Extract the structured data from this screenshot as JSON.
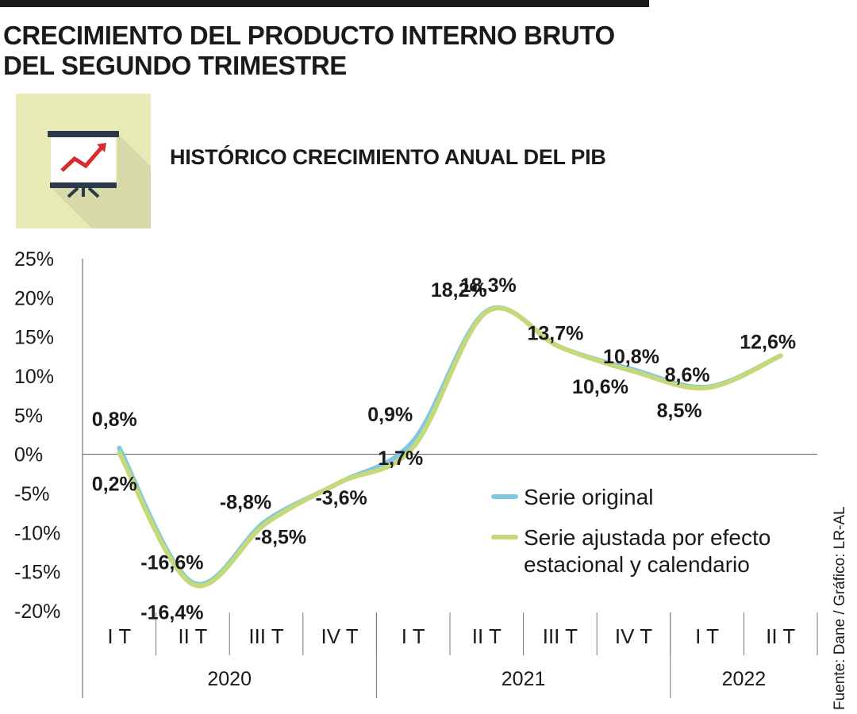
{
  "header": {
    "title_line1": "CRECIMIENTO DEL PRODUCTO INTERNO BRUTO",
    "title_line2": "DEL SEGUNDO TRIMESTRE",
    "subtitle": "HISTÓRICO CRECIMIENTO ANUAL DEL PIB"
  },
  "source": "Fuente: Dane / Gráfico: LR-AL",
  "colors": {
    "original": "#7ec8e3",
    "adjusted": "#c5d97a",
    "icon_bg": "#e8ebb5",
    "icon_board": "#ffffff",
    "icon_frame": "#2b3a4a",
    "icon_line": "#d92b2b"
  },
  "icon": "presentation-chart-icon",
  "chart_data": {
    "type": "line",
    "title": "HISTÓRICO CRECIMIENTO ANUAL DEL PIB",
    "xlabel": "",
    "ylabel": "",
    "ylim": [
      -20,
      25
    ],
    "yticks": [
      25,
      20,
      15,
      10,
      5,
      0,
      -5,
      -10,
      -15,
      -20
    ],
    "ytick_labels": [
      "25%",
      "20%",
      "15%",
      "10%",
      "5%",
      "0%",
      "-5%",
      "-10%",
      "-15%",
      "-20%"
    ],
    "categories": [
      "I T",
      "II T",
      "III T",
      "IV T",
      "I T",
      "II T",
      "III T",
      "IV T",
      "I T",
      "II T"
    ],
    "year_groups": [
      {
        "label": "2020",
        "count": 4
      },
      {
        "label": "2021",
        "count": 4
      },
      {
        "label": "2022",
        "count": 2
      }
    ],
    "series": [
      {
        "name": "Serie original",
        "color_key": "original",
        "values": [
          0.8,
          -16.4,
          -8.5,
          -3.6,
          1.7,
          18.3,
          13.7,
          10.8,
          8.6,
          12.6
        ],
        "labels": [
          "0,8%",
          "-16,4%",
          "-8,5%",
          "-3,6%",
          "1,7%",
          "18,3%",
          "13,7%",
          "10,8%",
          "8,6%",
          "12,6%"
        ]
      },
      {
        "name": "Serie ajustada por efecto estacional y calendario",
        "legend_lines": [
          "Serie ajustada por efecto",
          "estacional y calendario"
        ],
        "color_key": "adjusted",
        "values": [
          0.2,
          -16.6,
          -8.8,
          -3.6,
          0.9,
          18.2,
          13.7,
          10.6,
          8.5,
          12.6
        ],
        "labels": [
          "0,2%",
          "-16,6%",
          "-8,8%",
          "",
          "0,9%",
          "18,2%",
          "",
          "10,6%",
          "8,5%",
          ""
        ]
      }
    ],
    "legend": {
      "placement": "bottom-right"
    }
  }
}
